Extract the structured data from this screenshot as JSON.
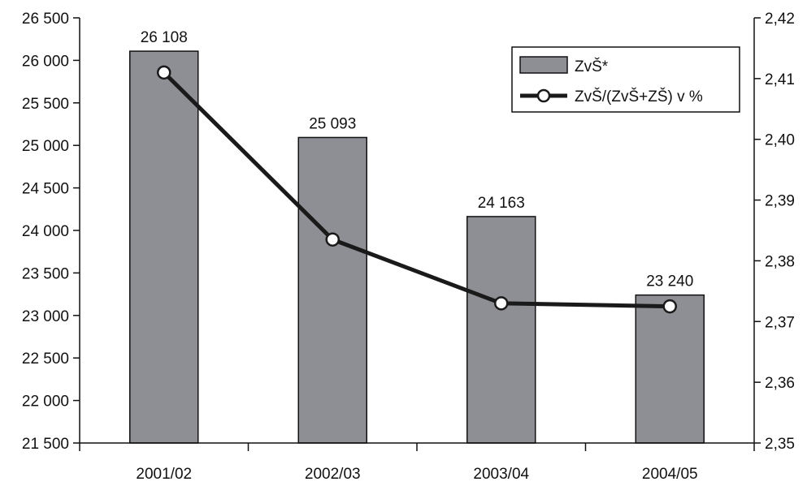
{
  "chart_data": {
    "type": "bar",
    "categories": [
      "2001/02",
      "2002/03",
      "2003/04",
      "2004/05"
    ],
    "series": [
      {
        "name": "ZvŠ*",
        "type": "bar",
        "axis": "left",
        "values": [
          26108,
          25093,
          24163,
          23240
        ],
        "data_labels": [
          "26 108",
          "25 093",
          "24 163",
          "23 240"
        ],
        "color": "#8e8f95"
      },
      {
        "name": "ZvŠ/(ZvŠ+ZŠ) v %",
        "type": "line",
        "axis": "right",
        "values": [
          2.411,
          2.3835,
          2.373,
          2.3725
        ],
        "color": "#1a1a1a"
      }
    ],
    "y_left": {
      "min": 21500,
      "max": 26500,
      "step": 500,
      "tick_labels": [
        "21 500",
        "22 000",
        "22 500",
        "23 000",
        "23 500",
        "24 000",
        "24 500",
        "25 000",
        "25 500",
        "26 000",
        "26 500"
      ]
    },
    "y_right": {
      "min": 2.35,
      "max": 2.42,
      "step": 0.01,
      "tick_labels": [
        "2,35",
        "2,36",
        "2,37",
        "2,38",
        "2,39",
        "2,40",
        "2,41",
        "2,42"
      ]
    },
    "legend_position": "top-right",
    "grid": false
  }
}
